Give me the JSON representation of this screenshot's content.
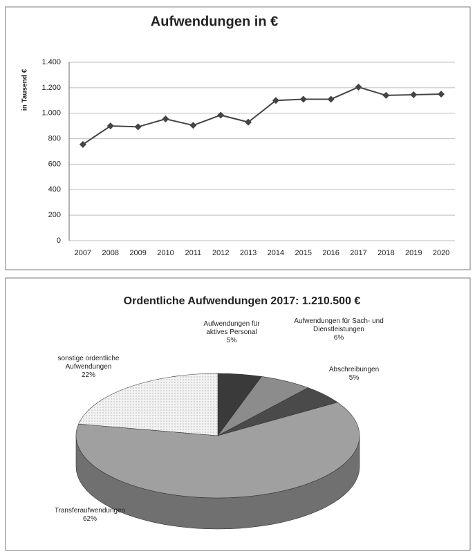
{
  "chart_data": [
    {
      "type": "line",
      "title": "Aufwendungen in €",
      "y_label": "in Tausend €",
      "categories": [
        "2007",
        "2008",
        "2009",
        "2010",
        "2011",
        "2012",
        "2013",
        "2014",
        "2015",
        "2016",
        "2017",
        "2018",
        "2019",
        "2020"
      ],
      "values": [
        755,
        900,
        893,
        955,
        905,
        985,
        930,
        1100,
        1110,
        1110,
        1205,
        1140,
        1145,
        1150
      ],
      "color": "#444444",
      "ylim": [
        0,
        1400
      ],
      "yticks": [
        0,
        200,
        400,
        600,
        800,
        {
          "value": 1000,
          "label": "1.000"
        },
        {
          "value": 1200,
          "label": "1.200"
        },
        {
          "value": 1400,
          "label": "1.400"
        }
      ],
      "grid": true
    },
    {
      "type": "pie3d",
      "title": "Ordentliche Aufwendungen 2017: 1.210.500 €",
      "categories": [
        "Aufwendungen für aktives Personal",
        "Aufwendungen für Sach- und Dienstleistungen",
        "Abschreibungen",
        "Transferaufwendungen",
        "sonstige ordentliche Aufwendungen"
      ],
      "values": [
        5,
        6,
        5,
        62,
        22
      ],
      "value_labels": [
        "5%",
        "6%",
        "5%",
        "62%",
        "22%"
      ],
      "colors": [
        "#3a3a3a",
        "#8c8c8c",
        "#4a4a4a",
        "#a0a0a0",
        "#ececec"
      ]
    }
  ]
}
